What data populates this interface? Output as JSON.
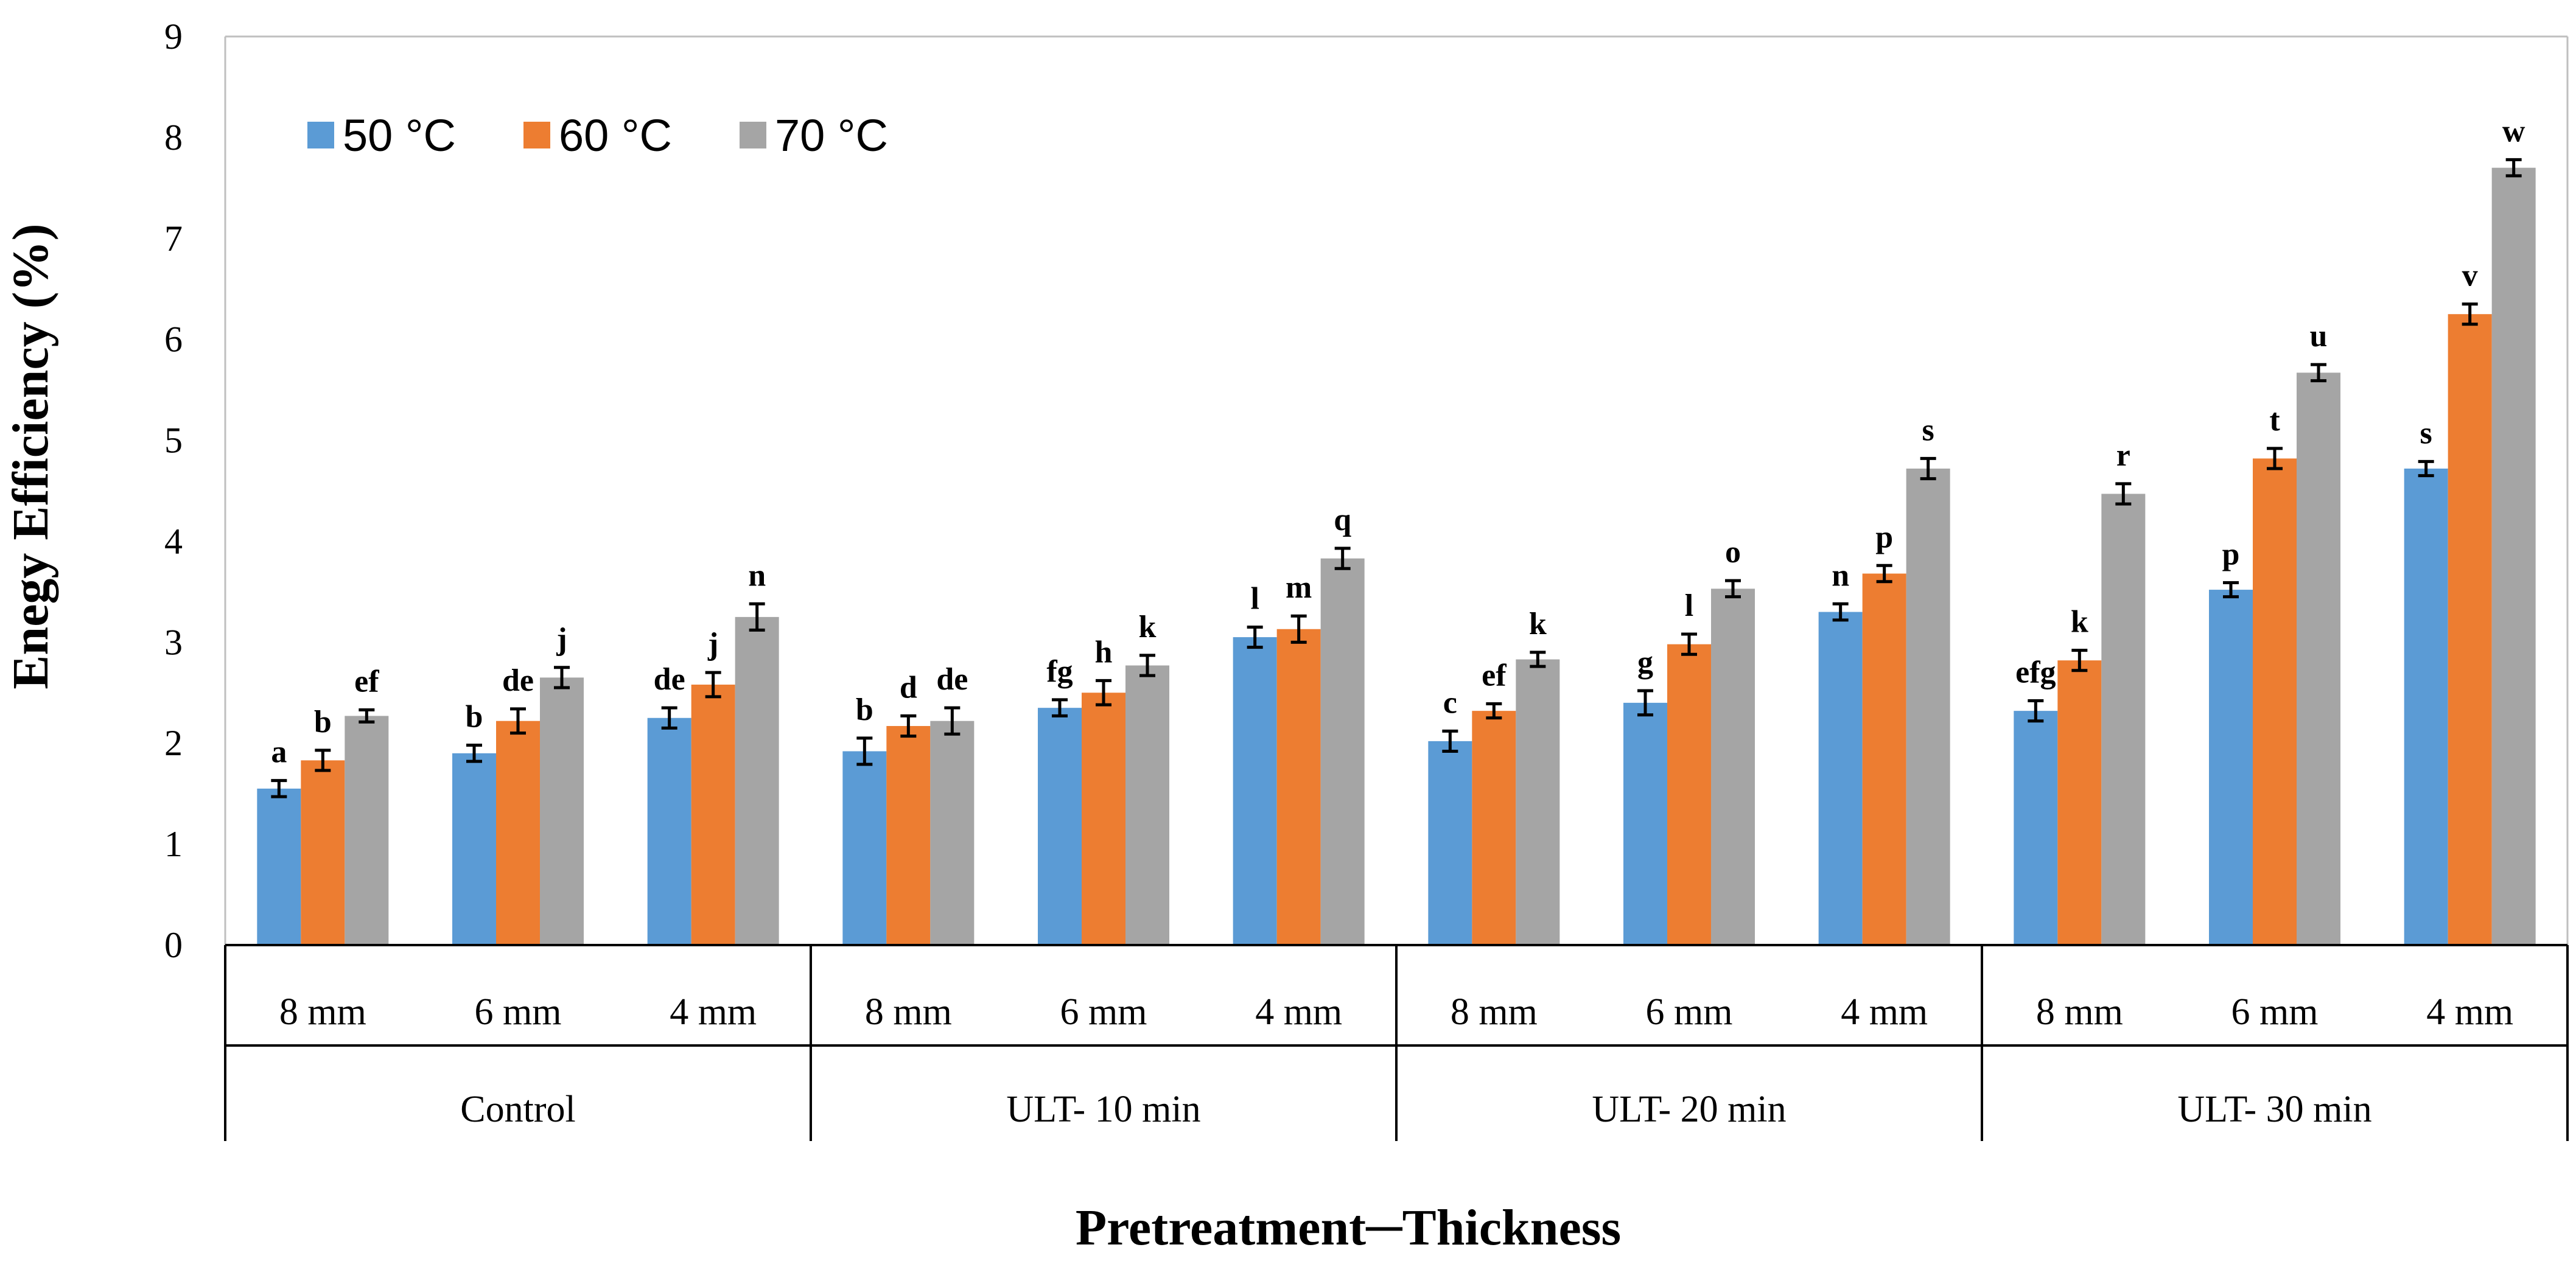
{
  "chart_data": {
    "type": "bar",
    "title": "",
    "xlabel": "Pretreatment─Thickness",
    "ylabel": "Enegy Efficiency (%)",
    "ylim": [
      0,
      9
    ],
    "yticks": [
      "0",
      "1",
      "2",
      "3",
      "4",
      "5",
      "6",
      "7",
      "8",
      "9"
    ],
    "groups": [
      "Control",
      "ULT- 10 min",
      "ULT- 20 min",
      "ULT- 30 min"
    ],
    "categories": [
      "8 mm",
      "6 mm",
      "4 mm",
      "8 mm",
      "6 mm",
      "4 mm",
      "8 mm",
      "6 mm",
      "4 mm",
      "8 mm",
      "6 mm",
      "4 mm"
    ],
    "legend_position": "top-left",
    "series": [
      {
        "name": "50 °C",
        "color": "#5B9BD5",
        "values": [
          1.55,
          1.9,
          2.25,
          1.92,
          2.35,
          3.05,
          2.02,
          2.4,
          3.3,
          2.32,
          3.52,
          4.72
        ],
        "errors": [
          0.08,
          0.08,
          0.1,
          0.13,
          0.08,
          0.1,
          0.1,
          0.12,
          0.08,
          0.1,
          0.07,
          0.07
        ],
        "labels": [
          "a",
          "b",
          "de",
          "b",
          "fg",
          "l",
          "c",
          "g",
          "n",
          "efg",
          "p",
          "s"
        ]
      },
      {
        "name": "60 °C",
        "color": "#ED7D31",
        "values": [
          1.83,
          2.22,
          2.58,
          2.17,
          2.5,
          3.13,
          2.32,
          2.98,
          3.68,
          2.82,
          4.82,
          6.25
        ],
        "errors": [
          0.1,
          0.12,
          0.12,
          0.1,
          0.12,
          0.13,
          0.07,
          0.1,
          0.08,
          0.1,
          0.1,
          0.1
        ],
        "labels": [
          "b",
          "de",
          "j",
          "d",
          "h",
          "m",
          "ef",
          "l",
          "p",
          "k",
          "t",
          "v"
        ]
      },
      {
        "name": "70 °C",
        "color": "#A5A5A5",
        "values": [
          2.27,
          2.65,
          3.25,
          2.22,
          2.77,
          3.83,
          2.83,
          3.53,
          4.72,
          4.47,
          5.67,
          7.7
        ],
        "errors": [
          0.06,
          0.1,
          0.13,
          0.13,
          0.1,
          0.1,
          0.07,
          0.08,
          0.1,
          0.1,
          0.08,
          0.08
        ],
        "labels": [
          "ef",
          "j",
          "n",
          "de",
          "k",
          "q",
          "k",
          "o",
          "s",
          "r",
          "u",
          "w"
        ]
      }
    ]
  }
}
